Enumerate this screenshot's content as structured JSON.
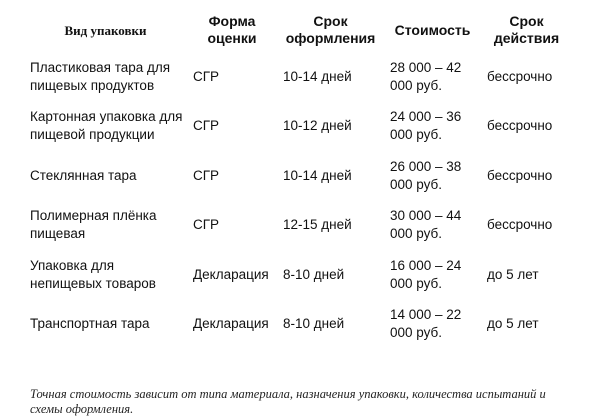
{
  "table": {
    "headers": [
      {
        "label": "Вид упаковки"
      },
      {
        "label": "Форма оценки"
      },
      {
        "label": "Срок оформления"
      },
      {
        "label": "Стоимость"
      },
      {
        "label": "Срок действия"
      }
    ],
    "rows": [
      {
        "type": "Пластиковая тара для пищевых продуктов",
        "form": "СГР",
        "term": "10-14 дней",
        "cost": "28 000 – 42 000 руб.",
        "validity": "бессрочно"
      },
      {
        "type": "Картонная упаковка для пищевой продукции",
        "form": "СГР",
        "term": "10-12 дней",
        "cost": "24 000 – 36 000 руб.",
        "validity": "бессрочно"
      },
      {
        "type": "Стеклянная тара",
        "form": "СГР",
        "term": "10-14 дней",
        "cost": "26 000 – 38 000 руб.",
        "validity": "бессрочно"
      },
      {
        "type": "Полимерная плёнка пищевая",
        "form": "СГР",
        "term": "12-15 дней",
        "cost": "30 000 – 44 000 руб.",
        "validity": "бессрочно"
      },
      {
        "type": "Упаковка для непищевых товаров",
        "form": "Декларация",
        "term": "8-10 дней",
        "cost": "16 000 – 24 000 руб.",
        "validity": "до 5 лет"
      },
      {
        "type": "Транспортная тара",
        "form": "Декларация",
        "term": "8-10 дней",
        "cost": "14 000 – 22 000 руб.",
        "validity": "до 5 лет"
      }
    ]
  },
  "note": "Точная стоимость зависит от типа материала, назначения упаковки, количества испытаний и схемы оформления."
}
